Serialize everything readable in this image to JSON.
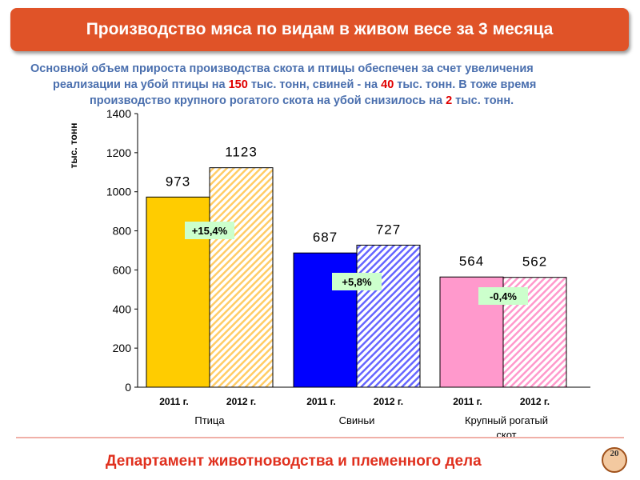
{
  "header": {
    "title": "Производство мяса по видам в живом весе за 3 месяца"
  },
  "subtitle": {
    "line1": "Основной объем прироста производства скота и птицы обеспечен за счет увеличения",
    "line2a": "реализации на убой птицы на ",
    "v1": "150",
    "line2b": " тыс. тонн, свиней -  на ",
    "v2": "40",
    "line2c": " тыс. тонн. В тоже время",
    "line3a": "производство крупного рогатого скота на убой снизилось на ",
    "v3": "2",
    "line3b": " тыс. тонн."
  },
  "footer": {
    "text": "Департамент животноводства и племенного дела",
    "page": "20"
  },
  "chart_data": {
    "type": "bar",
    "ylabel": "тыс. тонн",
    "ylim": [
      0,
      1400
    ],
    "yticks": [
      "0",
      "200",
      "400",
      "600",
      "800",
      "1000",
      "1200",
      "1400"
    ],
    "categories": [
      "Птица",
      "Свиньи",
      "Крупный рогатый скот"
    ],
    "series": [
      {
        "name": "2011 г.",
        "values": [
          973,
          687,
          564
        ]
      },
      {
        "name": "2012 г.",
        "values": [
          1123,
          727,
          562
        ]
      }
    ],
    "changes": [
      "+15,4%",
      "+5,8%",
      "-0,4%"
    ],
    "colors": {
      "2011": [
        "#ffcc00",
        "#0000ff",
        "#ff99cc"
      ],
      "2012": [
        "#ffcc66",
        "#6666ff",
        "#ff99cc"
      ]
    }
  }
}
